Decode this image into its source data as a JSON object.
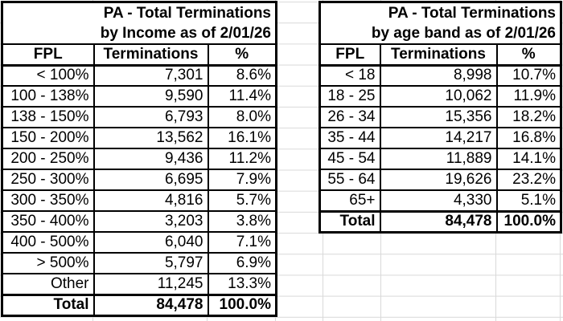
{
  "sheet": {
    "background": "#ffffff",
    "gridline_color": "#d9d9d9",
    "table_border_color": "#000000",
    "text_color": "#000000"
  },
  "tables": [
    {
      "id": "income",
      "title_line1": "PA - Total Terminations",
      "title_line2": "by Income as of 2/01/26",
      "headers": [
        "FPL",
        "Terminations",
        "%"
      ],
      "rows": [
        {
          "fpl": "< 100%",
          "terminations": "7,301",
          "pct": "8.6%",
          "bold": false
        },
        {
          "fpl": "100 - 138%",
          "terminations": "9,590",
          "pct": "11.4%",
          "bold": false
        },
        {
          "fpl": "138 - 150%",
          "terminations": "6,793",
          "pct": "8.0%",
          "bold": false
        },
        {
          "fpl": "150 - 200%",
          "terminations": "13,562",
          "pct": "16.1%",
          "bold": false
        },
        {
          "fpl": "200 - 250%",
          "terminations": "9,436",
          "pct": "11.2%",
          "bold": false
        },
        {
          "fpl": "250 - 300%",
          "terminations": "6,695",
          "pct": "7.9%",
          "bold": false
        },
        {
          "fpl": "300 - 350%",
          "terminations": "4,816",
          "pct": "5.7%",
          "bold": false
        },
        {
          "fpl": "350 - 400%",
          "terminations": "3,203",
          "pct": "3.8%",
          "bold": false
        },
        {
          "fpl": "400 - 500%",
          "terminations": "6,040",
          "pct": "7.1%",
          "bold": false
        },
        {
          "fpl": "> 500%",
          "terminations": "5,797",
          "pct": "6.9%",
          "bold": false
        },
        {
          "fpl": "Other",
          "terminations": "11,245",
          "pct": "13.3%",
          "bold": false
        },
        {
          "fpl": "Total",
          "terminations": "84,478",
          "pct": "100.0%",
          "bold": true
        }
      ]
    },
    {
      "id": "ageband",
      "title_line1": "PA - Total Terminations",
      "title_line2": "by age band as of 2/01/26",
      "headers": [
        "FPL",
        "Terminations",
        "%"
      ],
      "rows": [
        {
          "fpl": "< 18",
          "terminations": "8,998",
          "pct": "10.7%",
          "bold": false
        },
        {
          "fpl": "18 - 25",
          "terminations": "10,062",
          "pct": "11.9%",
          "bold": false
        },
        {
          "fpl": "26 - 34",
          "terminations": "15,356",
          "pct": "18.2%",
          "bold": false
        },
        {
          "fpl": "35 - 44",
          "terminations": "14,217",
          "pct": "16.8%",
          "bold": false
        },
        {
          "fpl": "45 - 54",
          "terminations": "11,889",
          "pct": "14.1%",
          "bold": false
        },
        {
          "fpl": "55 - 64",
          "terminations": "19,626",
          "pct": "23.2%",
          "bold": false
        },
        {
          "fpl": "65+",
          "terminations": "4,330",
          "pct": "5.1%",
          "bold": false
        },
        {
          "fpl": "Total",
          "terminations": "84,478",
          "pct": "100.0%",
          "bold": true
        }
      ]
    }
  ]
}
